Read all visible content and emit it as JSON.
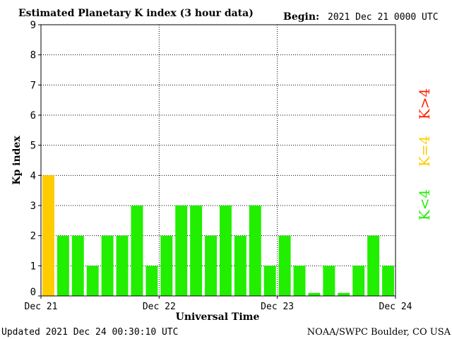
{
  "header": {
    "title": "Estimated Planetary K index (3 hour data)",
    "begin_label": "Begin:",
    "begin_value": "2021 Dec 21 0000 UTC"
  },
  "footer": {
    "updated": "Updated 2021 Dec 24 00:30:10 UTC",
    "credit": "NOAA/SWPC Boulder, CO USA"
  },
  "legend": {
    "items": [
      {
        "label": "K<4",
        "color": "#22ee00"
      },
      {
        "label": "K=4",
        "color": "#ffcc00"
      },
      {
        "label": "K>4",
        "color": "#ff2200"
      }
    ]
  },
  "chart_data": {
    "type": "bar",
    "title": "Estimated Planetary K index (3 hour data)",
    "xlabel": "Universal Time",
    "ylabel": "Kp index",
    "ylim": [
      0,
      9
    ],
    "yticks": [
      0,
      1,
      2,
      3,
      4,
      5,
      6,
      7,
      8,
      9
    ],
    "xtick_labels": [
      "Dec 21",
      "Dec 22",
      "Dec 23",
      "Dec 24"
    ],
    "grid": true,
    "values": [
      4,
      2,
      2,
      1,
      2,
      2,
      3,
      1,
      2,
      3,
      3,
      2,
      3,
      2,
      3,
      1,
      2,
      1,
      0.1,
      1,
      0.1,
      1,
      2,
      1
    ],
    "colors": {
      "below4": "#22ee00",
      "equal4": "#ffcc00",
      "above4": "#ff2200"
    }
  }
}
